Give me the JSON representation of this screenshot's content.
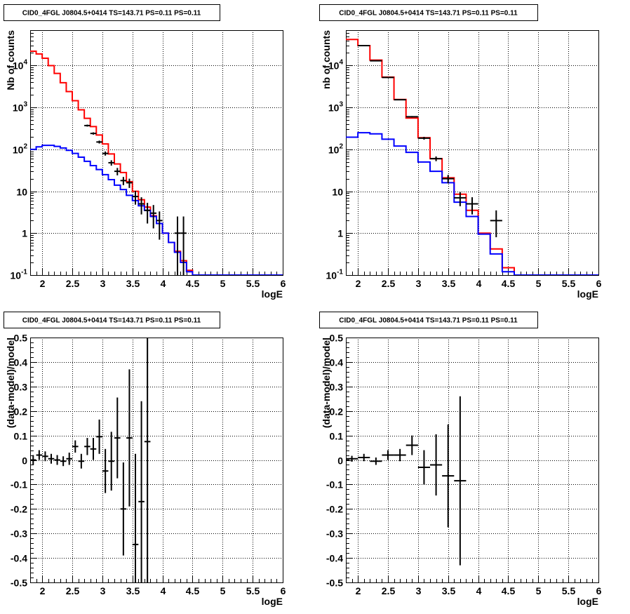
{
  "chart_data": [
    {
      "type": "line",
      "title": "CID0_4FGL J0804.5+0414 TS=143.71 PS=0.11 PS=0.11",
      "xlabel": "logE",
      "ylabel": "Nb of counts",
      "xlim": [
        1.8,
        6.0
      ],
      "ylim": [
        0.1,
        70000
      ],
      "yscale": "log",
      "grid": true,
      "x_ticks": [
        "2",
        "2.5",
        "3",
        "3.5",
        "4",
        "4.5",
        "5",
        "5.5",
        "6"
      ],
      "y_ticks": [
        "10^-1",
        "1",
        "10",
        "10^2",
        "10^3",
        "10^4"
      ],
      "bin_edges": [
        1.8,
        1.9,
        2.0,
        2.1,
        2.2,
        2.3,
        2.4,
        2.5,
        2.6,
        2.7,
        2.8,
        2.9,
        3.0,
        3.1,
        3.2,
        3.3,
        3.4,
        3.5,
        3.6,
        3.7,
        3.8,
        3.9,
        4.0,
        4.1,
        4.2,
        4.3,
        4.4,
        4.5,
        4.6,
        4.7,
        4.8,
        4.9,
        5.0,
        5.1,
        5.2,
        5.3,
        5.4,
        5.5,
        5.6,
        5.7,
        5.8,
        5.9,
        6.0
      ],
      "series": [
        {
          "color": "#ff0000",
          "style": "hist",
          "values": [
            22000,
            19000,
            15000,
            10000,
            6500,
            3900,
            2400,
            1450,
            880,
            550,
            350,
            220,
            135,
            78,
            45,
            28,
            17,
            10,
            6.3,
            4.2,
            2.6,
            1.7,
            1.0,
            0.6,
            0.37,
            0.22,
            0.13,
            0.1,
            0.1,
            0.1,
            0.1,
            0.1,
            0.1,
            0.1,
            0.1,
            0.1,
            0.1,
            0.1,
            0.1,
            0.1,
            0.1,
            0.1
          ]
        },
        {
          "color": "#0000ff",
          "style": "hist",
          "values": [
            100,
            115,
            125,
            125,
            118,
            108,
            95,
            80,
            65,
            52,
            41,
            33,
            25,
            19,
            14,
            11,
            8,
            6,
            4.5,
            3.5,
            2.5,
            1.7,
            1.0,
            0.6,
            0.35,
            0.2,
            0.12,
            0.1,
            0.1,
            0.1,
            0.1,
            0.1,
            0.1,
            0.1,
            0.1,
            0.1,
            0.1,
            0.1,
            0.1,
            0.1,
            0.1,
            0.1
          ]
        },
        {
          "color": "#000000",
          "style": "points",
          "x": [
            2.75,
            2.85,
            2.95,
            3.05,
            3.15,
            3.25,
            3.35,
            3.45,
            3.55,
            3.65,
            3.75,
            3.85,
            3.95,
            4.25,
            4.35
          ],
          "y": [
            370,
            240,
            150,
            80,
            48,
            30,
            18,
            16,
            7.5,
            5,
            3.5,
            3,
            2,
            1,
            1
          ],
          "yerr_low": [
            20,
            15,
            12,
            9,
            7,
            6,
            4,
            4,
            2.7,
            2.2,
            1.8,
            1.7,
            1.3,
            0.9,
            0.9
          ],
          "yerr_high": [
            20,
            15,
            12,
            9,
            7,
            6,
            4,
            4,
            2.7,
            2.2,
            1.8,
            1.7,
            1.3,
            1.5,
            1.5
          ]
        }
      ]
    },
    {
      "type": "line",
      "title": "CID0_4FGL J0804.5+0414 TS=143.71 PS=0.11 PS=0.11",
      "xlabel": "logE",
      "ylabel": "nb of counts",
      "xlim": [
        1.8,
        6.0
      ],
      "ylim": [
        0.1,
        70000
      ],
      "yscale": "log",
      "grid": true,
      "x_ticks": [
        "2",
        "2.5",
        "3",
        "3.5",
        "4",
        "4.5",
        "5",
        "5.5",
        "6"
      ],
      "y_ticks": [
        "10^-1",
        "1",
        "10",
        "10^2",
        "10^3",
        "10^4"
      ],
      "bin_edges": [
        1.8,
        2.0,
        2.2,
        2.4,
        2.6,
        2.8,
        3.0,
        3.2,
        3.4,
        3.6,
        3.8,
        4.0,
        4.2,
        4.4,
        4.6,
        4.8,
        5.0,
        5.2,
        5.4,
        5.6,
        5.8,
        6.0
      ],
      "series": [
        {
          "color": "#ff0000",
          "style": "hist",
          "values": [
            42000,
            30000,
            13500,
            5300,
            1550,
            560,
            190,
            60,
            21,
            8.5,
            3.5,
            1.0,
            0.42,
            0.15,
            0.1,
            0.1,
            0.1,
            0.1,
            0.1,
            0.1,
            0.1
          ]
        },
        {
          "color": "#0000ff",
          "style": "hist",
          "values": [
            195,
            250,
            235,
            175,
            120,
            85,
            50,
            30,
            16,
            5.5,
            2.5,
            0.95,
            0.32,
            0.12,
            0.1,
            0.1,
            0.1,
            0.1,
            0.1,
            0.1,
            0.1
          ]
        },
        {
          "color": "#000000",
          "style": "points",
          "x": [
            2.1,
            2.3,
            2.5,
            2.7,
            2.9,
            3.1,
            3.3,
            3.5,
            3.7,
            3.9,
            4.3
          ],
          "y": [
            30000,
            13000,
            5200,
            1530,
            600,
            185,
            60,
            20,
            7,
            5,
            2
          ],
          "yerr_low": [
            170,
            115,
            72,
            39,
            24,
            14,
            7.7,
            4.5,
            2.6,
            2.2,
            1.2
          ],
          "yerr_high": [
            170,
            115,
            72,
            39,
            24,
            14,
            7.7,
            4.5,
            2.6,
            2.2,
            1.5
          ]
        }
      ]
    },
    {
      "type": "scatter",
      "title": "CID0_4FGL J0804.5+0414 TS=143.71 PS=0.11 PS=0.11",
      "xlabel": "logE",
      "ylabel": "(data-model)/model",
      "xlim": [
        1.8,
        6.0
      ],
      "ylim": [
        -0.5,
        0.5
      ],
      "grid": true,
      "x_ticks": [
        "2",
        "2.5",
        "3",
        "3.5",
        "4",
        "4.5",
        "5",
        "5.5",
        "6"
      ],
      "y_ticks": [
        "-0.5",
        "-0.4",
        "-0.3",
        "-0.2",
        "-0.1",
        "0",
        "0.1",
        "0.2",
        "0.3",
        "0.4",
        "0.5"
      ],
      "bin_width": 0.1,
      "series": [
        {
          "color": "#000000",
          "x": [
            1.85,
            1.95,
            2.05,
            2.15,
            2.25,
            2.35,
            2.45,
            2.55,
            2.65,
            2.75,
            2.85,
            2.95,
            3.05,
            3.15,
            3.25,
            3.35,
            3.45,
            3.55,
            3.65,
            3.75
          ],
          "y": [
            0.0,
            0.02,
            0.015,
            0.005,
            0.0,
            -0.005,
            0.005,
            0.055,
            -0.005,
            0.055,
            0.045,
            0.095,
            -0.045,
            -0.005,
            0.09,
            -0.2,
            0.09,
            -0.345,
            -0.17,
            0.075
          ],
          "err": [
            0.02,
            0.02,
            0.02,
            0.02,
            0.02,
            0.02,
            0.025,
            0.025,
            0.03,
            0.035,
            0.045,
            0.07,
            0.09,
            0.12,
            0.165,
            0.19,
            0.28,
            0.37,
            0.41,
            0.6
          ]
        }
      ]
    },
    {
      "type": "scatter",
      "title": "CID0_4FGL J0804.5+0414 TS=143.71 PS=0.11 PS=0.11",
      "xlabel": "logE",
      "ylabel": "(data-model)/model",
      "xlim": [
        1.8,
        6.0
      ],
      "ylim": [
        -0.5,
        0.5
      ],
      "grid": true,
      "x_ticks": [
        "2",
        "2.5",
        "3",
        "3.5",
        "4",
        "4.5",
        "5",
        "5.5",
        "6"
      ],
      "y_ticks": [
        "-0.5",
        "-0.4",
        "-0.3",
        "-0.2",
        "-0.1",
        "0",
        "0.1",
        "0.2",
        "0.3",
        "0.4",
        "0.5"
      ],
      "bin_width": 0.2,
      "series": [
        {
          "color": "#000000",
          "x": [
            1.9,
            2.1,
            2.3,
            2.5,
            2.7,
            2.9,
            3.1,
            3.3,
            3.5,
            3.7
          ],
          "y": [
            0.005,
            0.01,
            -0.005,
            0.02,
            0.02,
            0.06,
            -0.03,
            -0.02,
            -0.065,
            -0.085
          ],
          "err": [
            0.012,
            0.015,
            0.015,
            0.02,
            0.025,
            0.04,
            0.07,
            0.125,
            0.21,
            0.345
          ]
        }
      ]
    }
  ]
}
